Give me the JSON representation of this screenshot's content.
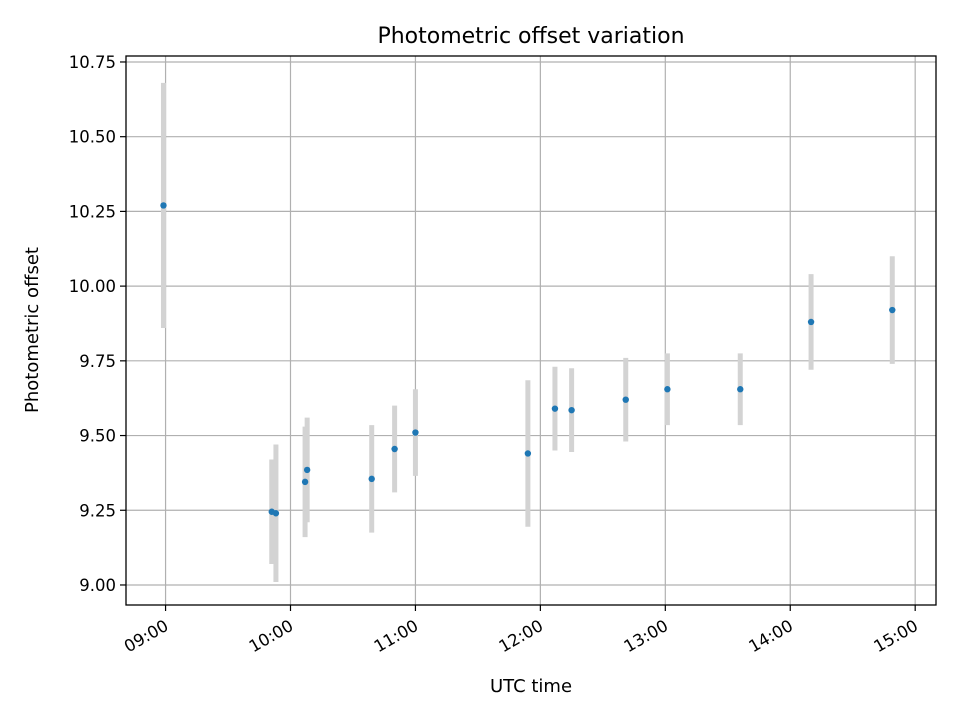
{
  "chart_data": {
    "type": "scatter",
    "title": "Photometric offset variation",
    "xlabel": "UTC time",
    "ylabel": "Photometric offset",
    "x_ticks": [
      "09:00",
      "10:00",
      "11:00",
      "12:00",
      "13:00",
      "14:00",
      "15:00"
    ],
    "y_ticks": [
      "9.00",
      "9.25",
      "9.50",
      "9.75",
      "10.00",
      "10.25",
      "10.50",
      "10.75"
    ],
    "xlim": [
      "08:41",
      "15:10"
    ],
    "ylim": [
      8.933,
      10.77
    ],
    "grid": true,
    "colors": {
      "point": "#1f77b4",
      "errorbar": "#d3d3d3",
      "grid": "#b0b0b0"
    },
    "points": [
      {
        "x": "08:59",
        "y": 10.27,
        "yerr": 0.41
      },
      {
        "x": "09:51",
        "y": 9.245,
        "yerr": 0.175
      },
      {
        "x": "09:53",
        "y": 9.24,
        "yerr": 0.23
      },
      {
        "x": "10:07",
        "y": 9.345,
        "yerr": 0.185
      },
      {
        "x": "10:08",
        "y": 9.385,
        "yerr": 0.175
      },
      {
        "x": "10:39",
        "y": 9.355,
        "yerr": 0.18
      },
      {
        "x": "10:50",
        "y": 9.455,
        "yerr": 0.145
      },
      {
        "x": "11:00",
        "y": 9.51,
        "yerr": 0.145
      },
      {
        "x": "11:54",
        "y": 9.44,
        "yerr": 0.245
      },
      {
        "x": "12:07",
        "y": 9.59,
        "yerr": 0.14
      },
      {
        "x": "12:15",
        "y": 9.585,
        "yerr": 0.14
      },
      {
        "x": "12:41",
        "y": 9.62,
        "yerr": 0.14
      },
      {
        "x": "13:01",
        "y": 9.655,
        "yerr": 0.12
      },
      {
        "x": "13:36",
        "y": 9.655,
        "yerr": 0.12
      },
      {
        "x": "14:10",
        "y": 9.88,
        "yerr": 0.16
      },
      {
        "x": "14:49",
        "y": 9.92,
        "yerr": 0.18
      }
    ]
  }
}
